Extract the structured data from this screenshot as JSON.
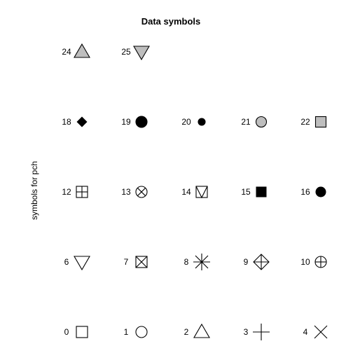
{
  "chart_data": {
    "type": "scatter",
    "title": "Data symbols",
    "ylabel": "symbols for pch",
    "colors": {
      "stroke": "#000000",
      "fill_gray": "#bebebe",
      "fill_black": "#000000"
    },
    "symbols": [
      {
        "pch": 0,
        "label": "0",
        "shape": "square-open",
        "fill": "none",
        "row": 0,
        "col": 0
      },
      {
        "pch": 1,
        "label": "1",
        "shape": "circle-open",
        "fill": "none",
        "row": 0,
        "col": 1
      },
      {
        "pch": 2,
        "label": "2",
        "shape": "triangle-up-open",
        "fill": "none",
        "row": 0,
        "col": 2
      },
      {
        "pch": 3,
        "label": "3",
        "shape": "plus",
        "fill": "none",
        "row": 0,
        "col": 3
      },
      {
        "pch": 4,
        "label": "4",
        "shape": "cross",
        "fill": "none",
        "row": 0,
        "col": 4
      },
      {
        "pch": 6,
        "label": "6",
        "shape": "triangle-down-open",
        "fill": "none",
        "row": 1,
        "col": 0
      },
      {
        "pch": 7,
        "label": "7",
        "shape": "square-cross",
        "fill": "none",
        "row": 1,
        "col": 1
      },
      {
        "pch": 8,
        "label": "8",
        "shape": "asterisk",
        "fill": "none",
        "row": 1,
        "col": 2
      },
      {
        "pch": 9,
        "label": "9",
        "shape": "diamond-plus",
        "fill": "none",
        "row": 1,
        "col": 3
      },
      {
        "pch": 10,
        "label": "10",
        "shape": "circle-plus",
        "fill": "none",
        "row": 1,
        "col": 4
      },
      {
        "pch": 12,
        "label": "12",
        "shape": "square-plus",
        "fill": "none",
        "row": 2,
        "col": 0
      },
      {
        "pch": 13,
        "label": "13",
        "shape": "circle-cross",
        "fill": "none",
        "row": 2,
        "col": 1
      },
      {
        "pch": 14,
        "label": "14",
        "shape": "square-triangle",
        "fill": "none",
        "row": 2,
        "col": 2
      },
      {
        "pch": 15,
        "label": "15",
        "shape": "square-filled",
        "fill": "black",
        "row": 2,
        "col": 3
      },
      {
        "pch": 16,
        "label": "16",
        "shape": "circle-filled",
        "fill": "black",
        "row": 2,
        "col": 4
      },
      {
        "pch": 18,
        "label": "18",
        "shape": "diamond-filled",
        "fill": "black",
        "row": 3,
        "col": 0
      },
      {
        "pch": 19,
        "label": "19",
        "shape": "circle-filled-large",
        "fill": "black",
        "row": 3,
        "col": 1
      },
      {
        "pch": 20,
        "label": "20",
        "shape": "circle-filled-small",
        "fill": "black",
        "row": 3,
        "col": 2
      },
      {
        "pch": 21,
        "label": "21",
        "shape": "circle-bordered",
        "fill": "gray",
        "row": 3,
        "col": 3
      },
      {
        "pch": 22,
        "label": "22",
        "shape": "square-bordered",
        "fill": "gray",
        "row": 3,
        "col": 4
      },
      {
        "pch": 24,
        "label": "24",
        "shape": "triangle-up-bordered",
        "fill": "gray",
        "row": 4,
        "col": 0
      },
      {
        "pch": 25,
        "label": "25",
        "shape": "triangle-down-bordered",
        "fill": "gray",
        "row": 4,
        "col": 1
      }
    ]
  }
}
